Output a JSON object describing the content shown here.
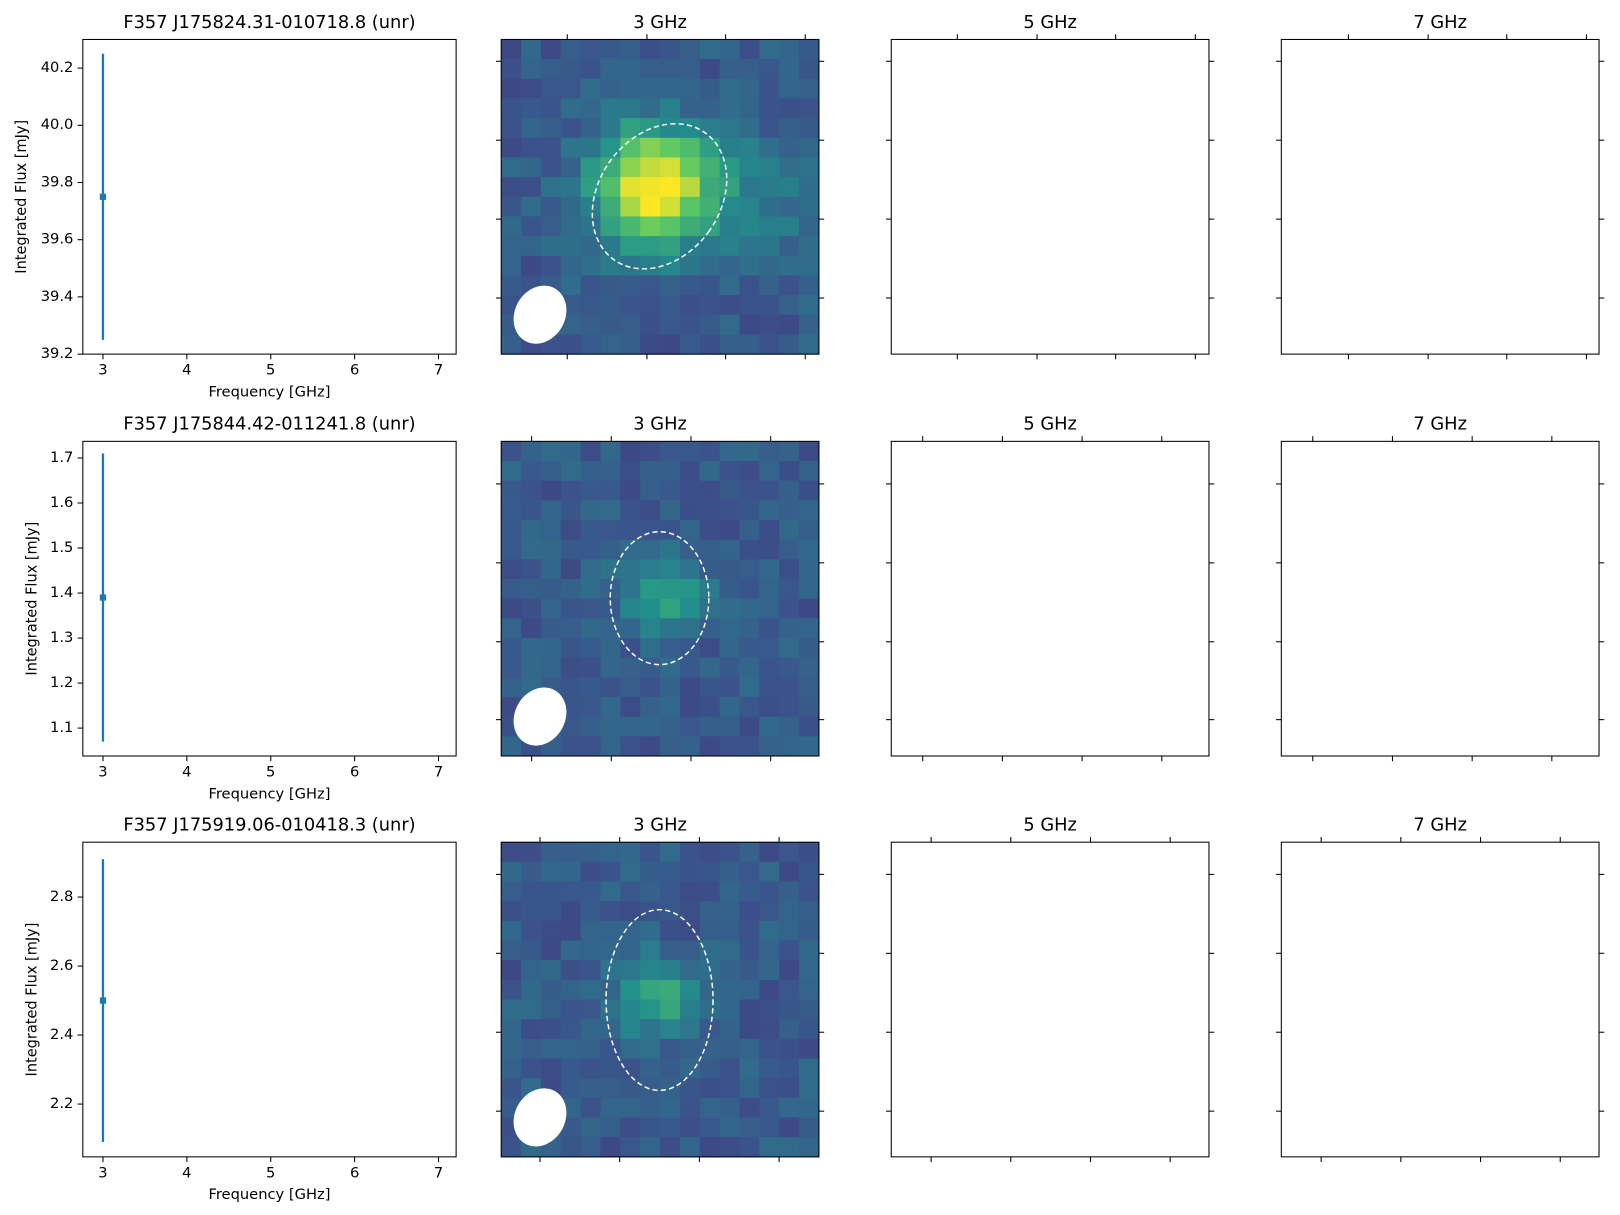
{
  "chart_data": [
    {
      "type": "errorbar",
      "title": "F357 J175824.31-010718.8 (unr)",
      "xlabel": "Frequency [GHz]",
      "ylabel": "Integrated Flux [mJy]",
      "x": [
        3
      ],
      "values": [
        39.75
      ],
      "errors": [
        0.5
      ],
      "color": "#1f77b4",
      "xlim": [
        2.76,
        7.21
      ],
      "ylim": [
        39.2,
        40.3
      ],
      "xticks": [
        3,
        4,
        5,
        6,
        7
      ],
      "yticks": [
        39.2,
        39.4,
        39.6,
        39.8,
        {
          "value": 40,
          "label": "40.0"
        },
        40.2
      ]
    },
    {
      "type": "image",
      "title": "3 GHz"
    },
    {
      "type": "empty",
      "title": "5 GHz"
    },
    {
      "type": "empty",
      "title": "7 GHz"
    },
    {
      "type": "errorbar",
      "title": "F357 J175844.42-011241.8 (unr)",
      "xlabel": "Frequency [GHz]",
      "ylabel": "Integrated Flux [mJy]",
      "x": [
        3
      ],
      "values": [
        1.39
      ],
      "errors": [
        0.32
      ],
      "color": "#1f77b4",
      "xlim": [
        2.76,
        7.21
      ],
      "ylim": [
        1.038,
        1.737
      ],
      "xticks": [
        3,
        4,
        5,
        6,
        7
      ],
      "yticks": [
        1.1,
        1.2,
        1.3,
        1.4,
        1.5,
        1.6,
        1.7
      ]
    },
    {
      "type": "image",
      "title": "3 GHz"
    },
    {
      "type": "empty",
      "title": "5 GHz"
    },
    {
      "type": "empty",
      "title": "7 GHz"
    },
    {
      "type": "errorbar",
      "title": "F357 J175919.06-010418.3 (unr)",
      "xlabel": "Frequency [GHz]",
      "ylabel": "Integrated Flux [mJy]",
      "x": [
        3
      ],
      "values": [
        2.5
      ],
      "errors": [
        0.41
      ],
      "color": "#1f77b4",
      "xlim": [
        2.76,
        7.21
      ],
      "ylim": [
        2.047,
        2.959
      ],
      "xticks": [
        3,
        4,
        5,
        6,
        7
      ],
      "yticks": [
        2.2,
        2.4,
        2.6,
        2.8
      ]
    },
    {
      "type": "image",
      "title": "3 GHz"
    },
    {
      "type": "empty",
      "title": "5 GHz"
    },
    {
      "type": "empty",
      "title": "7 GHz"
    }
  ]
}
